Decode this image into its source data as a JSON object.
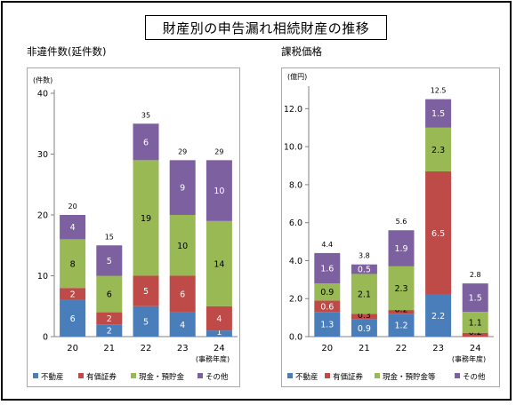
{
  "main_title": "財産別の申告漏れ相続財産の推移",
  "colors": {
    "不動産": "#4a7ebb",
    "有価証券": "#be4b48",
    "現金・預貯金": "#98b954",
    "その他": "#7d60a0"
  },
  "chart_data": [
    {
      "type": "bar",
      "stacked": true,
      "title": "非違件数(延件数)",
      "unit_label": "(件数)",
      "xlabel": "(事務年度)",
      "categories": [
        "20",
        "21",
        "22",
        "23",
        "24"
      ],
      "ylim": [
        0,
        40
      ],
      "yticks": [
        "0",
        "10",
        "20",
        "30",
        "40"
      ],
      "grid": false,
      "legend_position": "bottom",
      "series": [
        {
          "name": "不動産",
          "values": [
            6,
            2,
            5,
            4,
            1
          ],
          "labels": [
            "6",
            "2",
            "5",
            "4",
            "1"
          ],
          "color": "#4a7ebb"
        },
        {
          "name": "有価証券",
          "values": [
            2,
            2,
            5,
            6,
            4
          ],
          "labels": [
            "2",
            "2",
            "5",
            "6",
            "4"
          ],
          "color": "#be4b48"
        },
        {
          "name": "現金・預貯金",
          "values": [
            8,
            6,
            19,
            10,
            14
          ],
          "labels": [
            "8",
            "6",
            "19",
            "10",
            "14"
          ],
          "color": "#98b954"
        },
        {
          "name": "その他",
          "values": [
            4,
            5,
            6,
            9,
            10
          ],
          "labels": [
            "4",
            "5",
            "6",
            "9",
            "10"
          ],
          "color": "#7d60a0"
        }
      ],
      "totals": [
        "20",
        "15",
        "35",
        "29",
        "29"
      ]
    },
    {
      "type": "bar",
      "stacked": true,
      "title": "課税価格",
      "unit_label": "(億円)",
      "xlabel": "(事務年度)",
      "categories": [
        "20",
        "21",
        "22",
        "23",
        "24"
      ],
      "ylim": [
        0,
        13
      ],
      "yticks": [
        "0.0",
        "2.0",
        "4.0",
        "6.0",
        "8.0",
        "10.0",
        "12.0"
      ],
      "grid": false,
      "legend_position": "bottom",
      "series": [
        {
          "name": "不動産",
          "values": [
            1.3,
            0.9,
            1.2,
            2.2,
            0.0
          ],
          "labels": [
            "1.3",
            "0.9",
            "1.2",
            "2.2",
            ""
          ],
          "color": "#4a7ebb"
        },
        {
          "name": "有価証券",
          "values": [
            0.6,
            0.3,
            0.2,
            6.5,
            0.2
          ],
          "labels": [
            "0.6",
            "0.3",
            "0.2",
            "6.5",
            "0.2"
          ],
          "color": "#be4b48"
        },
        {
          "name": "現金・預貯金等",
          "values": [
            0.9,
            2.1,
            2.3,
            2.3,
            1.1
          ],
          "labels": [
            "0.9",
            "2.1",
            "2.3",
            "2.3",
            "1.1"
          ],
          "color": "#98b954"
        },
        {
          "name": "その他",
          "values": [
            1.6,
            0.5,
            1.9,
            1.5,
            1.5
          ],
          "labels": [
            "1.6",
            "0.5",
            "1.9",
            "1.5",
            "1.5"
          ],
          "color": "#7d60a0"
        }
      ],
      "totals": [
        "4.4",
        "3.8",
        "5.6",
        "12.5",
        "2.8"
      ]
    }
  ]
}
